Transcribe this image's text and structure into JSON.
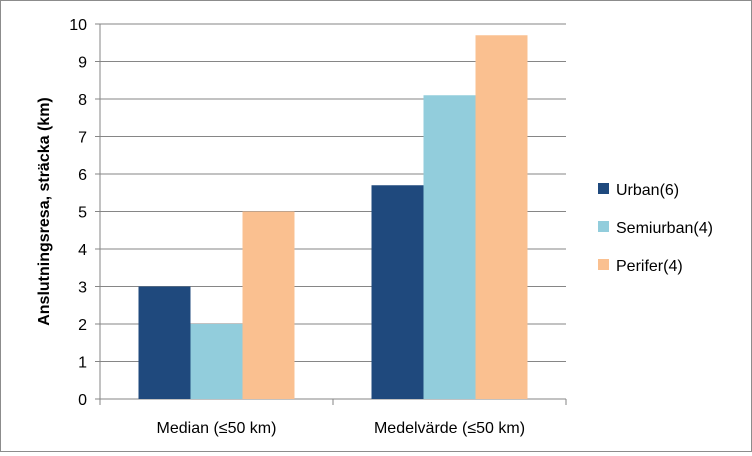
{
  "chart_data": {
    "type": "bar",
    "title": "",
    "ylabel": "Anslutningsresa, sträcka (km)",
    "xlabel": "",
    "categories": [
      "Median (≤50 km)",
      "Medelvärde (≤50 km)"
    ],
    "series": [
      {
        "name": "Urban(6)",
        "values": [
          3.0,
          5.7
        ],
        "color": "#1f497d"
      },
      {
        "name": "Semiurban(4)",
        "values": [
          2.0,
          8.1
        ],
        "color": "#92cddc"
      },
      {
        "name": "Perifer(4)",
        "values": [
          5.0,
          9.7
        ],
        "color": "#fac090"
      }
    ],
    "ylim": [
      0,
      10
    ],
    "yticks": [
      0,
      1,
      2,
      3,
      4,
      5,
      6,
      7,
      8,
      9,
      10
    ],
    "grid": true,
    "legend": "right"
  }
}
